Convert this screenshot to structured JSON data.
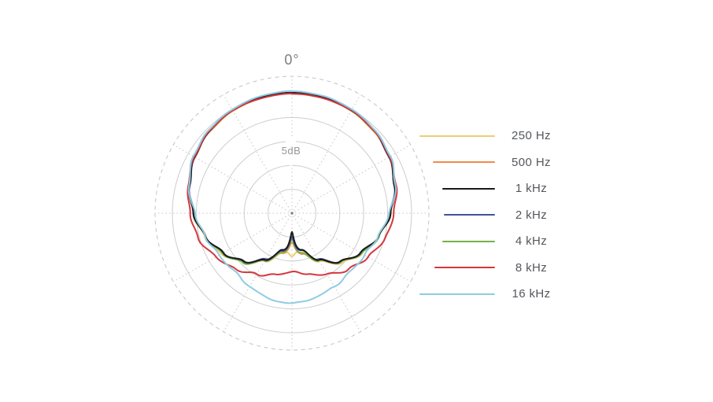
{
  "chart_data": {
    "type": "line",
    "subtype": "polar-pattern",
    "angle_label": "0°",
    "db_label": "5dB",
    "ring_spacing_db": 5,
    "solid_rings": 5,
    "grid": {
      "ring_color": "#cdcdcd",
      "ray_color": "#c4c4c4",
      "outer_dash_color": "#c9c9c9",
      "center_dot_color": "#777777",
      "ray_step_deg": 30
    },
    "legend_position": "right",
    "angles_deg": [
      0,
      15,
      30,
      45,
      60,
      75,
      90,
      105,
      120,
      135,
      150,
      165,
      180
    ],
    "series": [
      {
        "label": "250 Hz",
        "color": "#ecce72",
        "attenuation_db": [
          0,
          0.1,
          0.3,
          0.8,
          1.6,
          2.8,
          4.3,
          6.1,
          8.2,
          10.5,
          13.2,
          16.4,
          17.4
        ],
        "rear_spike_db": -1.2,
        "wiggle": 1.7,
        "stroke": 2
      },
      {
        "label": "500 Hz",
        "color": "#f08a4a",
        "attenuation_db": [
          -0.1,
          0,
          0.2,
          0.7,
          1.6,
          2.8,
          4.4,
          6.3,
          8.4,
          10.7,
          13.5,
          16.3,
          17.4
        ],
        "rear_spike_db": 1.5,
        "wiggle": 0.9,
        "stroke": 1.8
      },
      {
        "label": "1 kHz",
        "color": "#1a1a1a",
        "attenuation_db": [
          -0.2,
          -0.1,
          0.2,
          0.7,
          1.5,
          2.8,
          4.4,
          6.3,
          8.4,
          10.7,
          13.8,
          17.1,
          18.4
        ],
        "rear_spike_db": 2.6,
        "wiggle": 0.7,
        "stroke": 2
      },
      {
        "label": "2 kHz",
        "color": "#44519e",
        "attenuation_db": [
          -0.1,
          0,
          0.2,
          0.7,
          1.6,
          2.9,
          4.5,
          6.3,
          8.5,
          10.8,
          13.9,
          16.9,
          18.1
        ],
        "rear_spike_db": 2.0,
        "wiggle": 0.8,
        "stroke": 1.8
      },
      {
        "label": "4 kHz",
        "color": "#74b04a",
        "attenuation_db": [
          -0.2,
          -0.2,
          0.1,
          0.6,
          1.4,
          2.7,
          4.4,
          6.2,
          8.2,
          10.5,
          13.5,
          16.4,
          17.8
        ],
        "rear_spike_db": 1.8,
        "wiggle": 1.0,
        "stroke": 1.8
      },
      {
        "label": "8 kHz",
        "color": "#d4373d",
        "attenuation_db": [
          0,
          0.1,
          0.2,
          0.7,
          1.4,
          2.5,
          3.8,
          4.8,
          6.6,
          8.4,
          10.4,
          11.8,
          12.7
        ],
        "rear_spike_db": 0,
        "wiggle": 1.3,
        "stroke": 2
      },
      {
        "label": "16 kHz",
        "color": "#8fcbe4",
        "attenuation_db": [
          -0.5,
          -0.3,
          -0.1,
          0.4,
          1.3,
          2.7,
          4.6,
          6.3,
          7.6,
          7.9,
          7.2,
          6.6,
          6.3
        ],
        "rear_spike_db": 0,
        "wiggle": 1.7,
        "stroke": 2
      }
    ],
    "legend_line_lengths": [
      96,
      79,
      67,
      65,
      67,
      77,
      96
    ],
    "draw_order": [
      0,
      1,
      4,
      3,
      2,
      5,
      6
    ]
  }
}
